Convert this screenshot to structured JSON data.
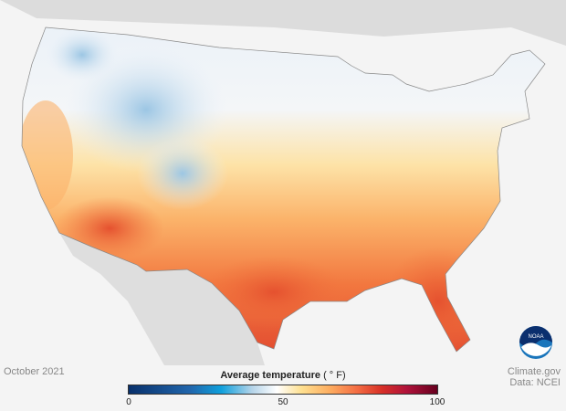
{
  "date_label": "October 2021",
  "credit": {
    "line1": "Climate.gov",
    "line2": "Data: NCEI"
  },
  "legend": {
    "title": "Average temperature",
    "unit": "( ° F)",
    "min": "0",
    "mid": "50",
    "max": "100",
    "colors": [
      "#08306b",
      "#2166ac",
      "#0fa0dc",
      "#b5d4e9",
      "#ffffff",
      "#fee090",
      "#fdae61",
      "#f46d43",
      "#d73027",
      "#b0123a",
      "#67001f"
    ]
  },
  "logo": {
    "text": "NOAA"
  }
}
